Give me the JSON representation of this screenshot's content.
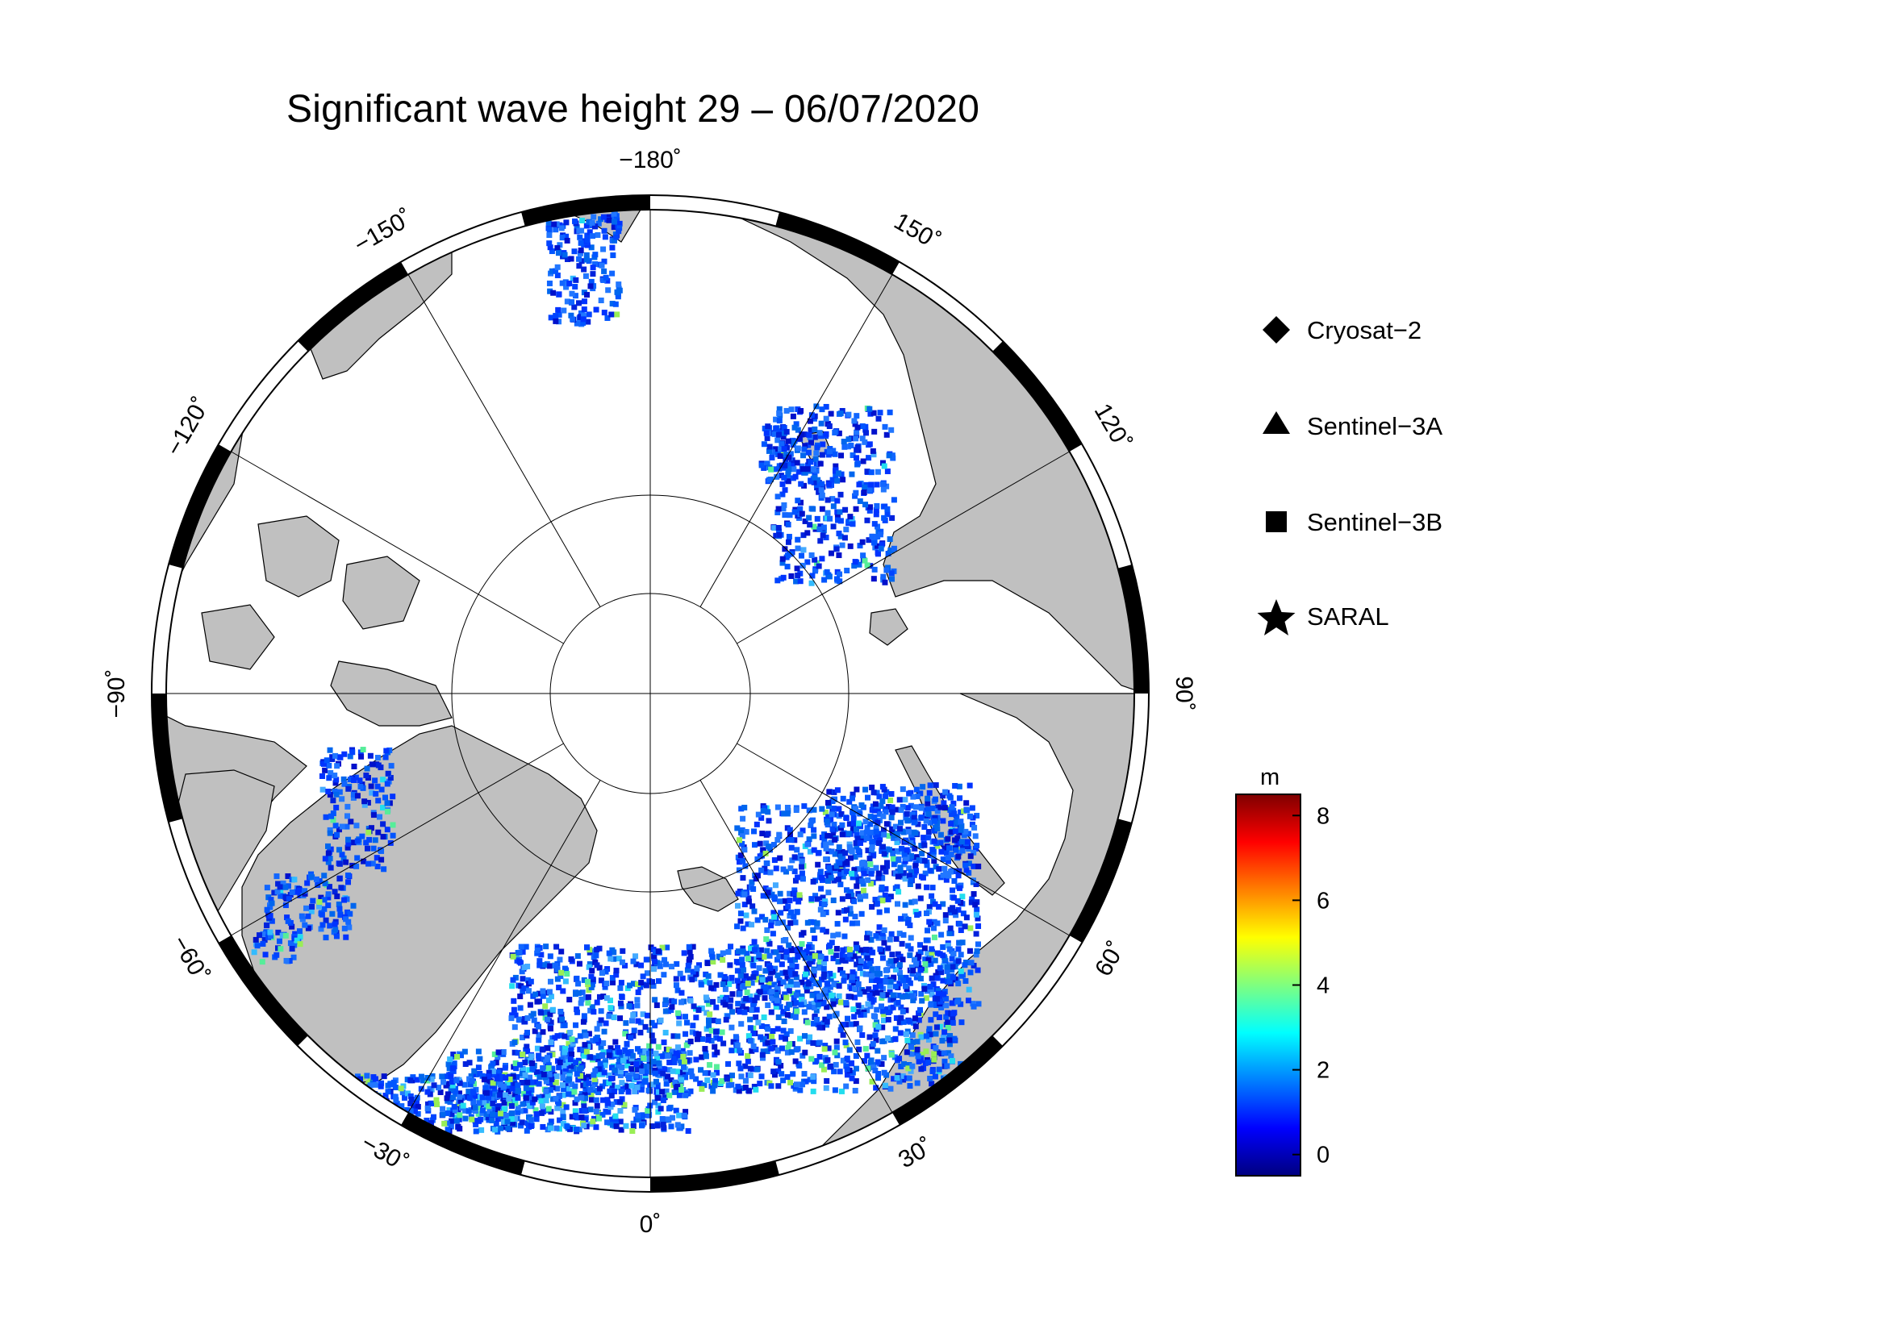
{
  "title": "Significant wave height 29 – 06/07/2020",
  "map": {
    "projection": "north-polar-stereographic",
    "longitude_labels": [
      {
        "lon": -180,
        "text": "−180˚"
      },
      {
        "lon": 150,
        "text": "150˚"
      },
      {
        "lon": 120,
        "text": "120˚"
      },
      {
        "lon": 90,
        "text": "90˚"
      },
      {
        "lon": 60,
        "text": "60˚"
      },
      {
        "lon": 30,
        "text": "30˚"
      },
      {
        "lon": 0,
        "text": "0˚"
      },
      {
        "lon": -30,
        "text": "−30˚"
      },
      {
        "lon": -60,
        "text": "−60˚"
      },
      {
        "lon": -90,
        "text": "−90˚"
      },
      {
        "lon": -120,
        "text": "−120˚"
      },
      {
        "lon": -150,
        "text": "−150˚"
      }
    ],
    "colors": {
      "land": "#c0c0c0",
      "sea_ice": "#ffffff",
      "coastline": "#000000"
    }
  },
  "legend": {
    "items": [
      {
        "label": "Cryosat−2",
        "symbol": "diamond-icon"
      },
      {
        "label": "Sentinel−3A",
        "symbol": "triangle-icon"
      },
      {
        "label": "Sentinel−3B",
        "symbol": "square-icon"
      },
      {
        "label": "SARAL",
        "symbol": "star-icon"
      }
    ]
  },
  "colorbar": {
    "unit": "m",
    "ticks": [
      "0",
      "2",
      "4",
      "6",
      "8"
    ],
    "tick_values": [
      0,
      2,
      4,
      6,
      8
    ],
    "range": [
      -0.5,
      8.5
    ],
    "colormap": [
      "#00007f",
      "#0000ff",
      "#007fff",
      "#00ffff",
      "#7fff7f",
      "#ffff00",
      "#ff7f00",
      "#ff0000",
      "#7f0000"
    ]
  }
}
